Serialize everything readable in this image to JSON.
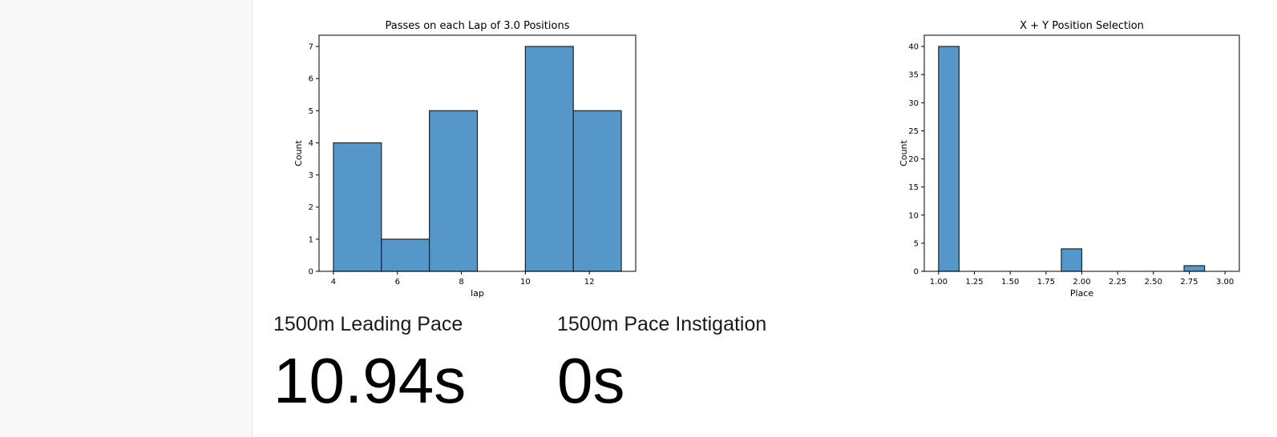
{
  "metrics": [
    {
      "label": "1500m Leading Pace",
      "value": "10.94s"
    },
    {
      "label": "1500m Pace Instigation",
      "value": "0s"
    }
  ],
  "chart_data": [
    {
      "type": "bar",
      "title": "Passes on each Lap of 3.0 Positions",
      "xlabel": "lap",
      "ylabel": "Count",
      "bins": [
        [
          4,
          5.5
        ],
        [
          5.5,
          7
        ],
        [
          7,
          8.5
        ],
        [
          8.5,
          10
        ],
        [
          10,
          11.5
        ],
        [
          11.5,
          13
        ]
      ],
      "values": [
        4,
        1,
        5,
        0,
        7,
        5
      ],
      "xlim": [
        3.55,
        13.45
      ],
      "ylim": [
        0,
        7.35
      ],
      "xticks": [
        4,
        6,
        8,
        10,
        12
      ],
      "xtick_labels": [
        "4",
        "6",
        "8",
        "10",
        "12"
      ],
      "yticks": [
        0,
        1,
        2,
        3,
        4,
        5,
        6,
        7
      ],
      "ytick_labels": [
        "0",
        "1",
        "2",
        "3",
        "4",
        "5",
        "6",
        "7"
      ],
      "color": "#5597c8",
      "grid": false
    },
    {
      "type": "bar",
      "title": "X + Y Position Selection",
      "xlabel": "Place",
      "ylabel": "Count",
      "bins": [
        [
          1.0,
          1.1429
        ],
        [
          1.1429,
          1.2857
        ],
        [
          1.2857,
          1.4286
        ],
        [
          1.4286,
          1.5714
        ],
        [
          1.5714,
          1.7143
        ],
        [
          1.7143,
          1.8571
        ],
        [
          1.8571,
          2.0
        ],
        [
          2.0,
          2.1429
        ],
        [
          2.1429,
          2.2857
        ],
        [
          2.2857,
          2.4286
        ],
        [
          2.4286,
          2.5714
        ],
        [
          2.5714,
          2.7143
        ],
        [
          2.7143,
          2.8571
        ],
        [
          2.8571,
          3.0
        ]
      ],
      "values": [
        40,
        0,
        0,
        0,
        0,
        0,
        4,
        0,
        0,
        0,
        0,
        0,
        1,
        0
      ],
      "xlim": [
        0.9,
        3.1
      ],
      "ylim": [
        0,
        42
      ],
      "xticks": [
        1.0,
        1.25,
        1.5,
        1.75,
        2.0,
        2.25,
        2.5,
        2.75,
        3.0
      ],
      "xtick_labels": [
        "1.00",
        "1.25",
        "1.50",
        "1.75",
        "2.00",
        "2.25",
        "2.50",
        "2.75",
        "3.00"
      ],
      "yticks": [
        0,
        5,
        10,
        15,
        20,
        25,
        30,
        35,
        40
      ],
      "ytick_labels": [
        "0",
        "5",
        "10",
        "15",
        "20",
        "25",
        "30",
        "35",
        "40"
      ],
      "color": "#5597c8",
      "grid": false
    }
  ]
}
